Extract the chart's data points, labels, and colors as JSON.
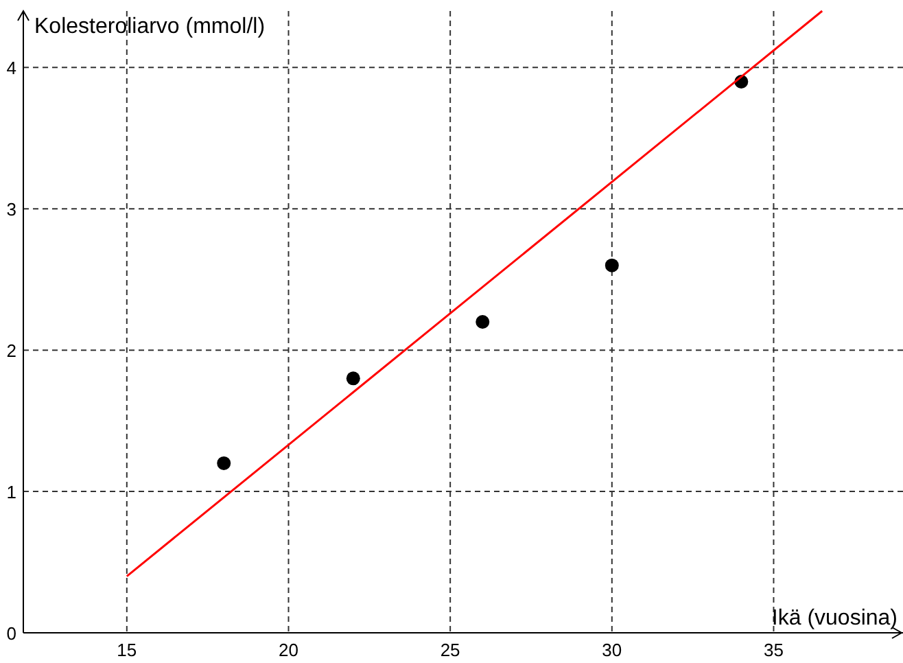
{
  "chart_data": {
    "type": "scatter",
    "xlabel": "Ikä (vuosina)",
    "ylabel": "Kolesteroliarvo (mmol/l)",
    "xlim": [
      11.8,
      39
    ],
    "ylim": [
      0,
      4.4
    ],
    "xticks": [
      15,
      20,
      25,
      30,
      35
    ],
    "yticks": [
      0,
      1,
      2,
      3,
      4
    ],
    "grid": true,
    "series": [
      {
        "color": "#000000",
        "marker": "circle",
        "x": [
          18,
          22,
          26,
          30,
          34
        ],
        "values": [
          1.2,
          1.8,
          2.2,
          2.6,
          3.9
        ]
      },
      {
        "type": "line",
        "color": "#ff0000",
        "line_style": "solid",
        "x": [
          15,
          36.5
        ],
        "values": [
          0.4,
          4.4
        ]
      }
    ]
  }
}
